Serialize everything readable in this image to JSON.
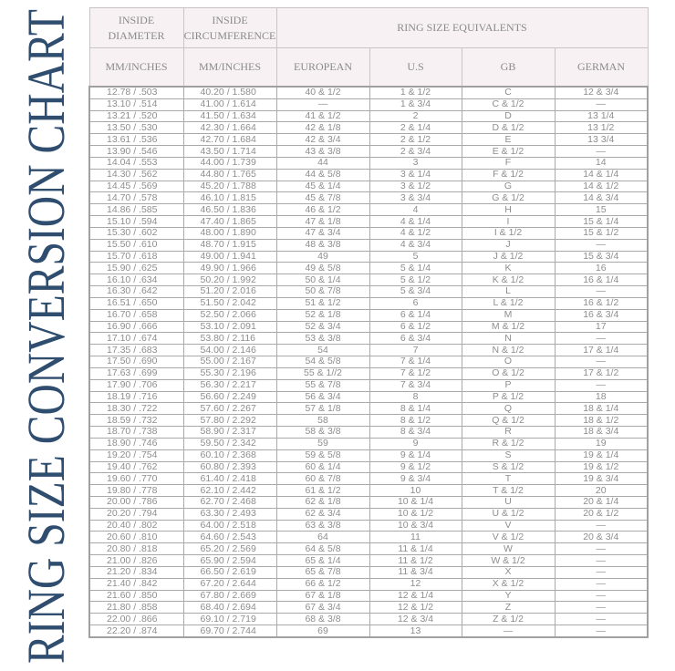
{
  "title": "RING SIZE CONVERSION CHART",
  "colors": {
    "title": "#2f4d6e",
    "header_bg": "#f7f1f3",
    "text": "#8e8e8e"
  },
  "header": {
    "inside_diameter": "INSIDE DIAMETER",
    "inside_circumference": "INSIDE CIRCUMFERENCE",
    "equivalents": "RING SIZE EQUIVALENTS",
    "sub": [
      "MM/INCHES",
      "MM/INCHES",
      "EUROPEAN",
      "U.S",
      "GB",
      "GERMAN"
    ]
  },
  "rows": [
    [
      "12.78 / .503",
      "40.20 / 1.580",
      "40 & 1/2",
      "1 & 1/2",
      "C",
      "12 & 3/4"
    ],
    [
      "13.10 / .514",
      "41.00 / 1.614",
      "—",
      "1 & 3/4",
      "C & 1/2",
      "—"
    ],
    [
      "13.21 / .520",
      "41.50 / 1.634",
      "41 & 1/2",
      "2",
      "D",
      "13 1/4"
    ],
    [
      "13.50 / .530",
      "42.30 / 1.664",
      "42 & 1/8",
      "2 & 1/4",
      "D & 1/2",
      "13 1/2"
    ],
    [
      "13.61 / .536",
      "42.70 / 1.684",
      "42 & 3/4",
      "2 & 1/2",
      "E",
      "13 3/4"
    ],
    [
      "13.90 / .546",
      "43.50 / 1.714",
      "43 & 3/8",
      "2 & 3/4",
      "E & 1/2",
      "—"
    ],
    [
      "14.04 / .553",
      "44.00 / 1.739",
      "44",
      "3",
      "F",
      "14"
    ],
    [
      "14.30 / .562",
      "44.80 / 1.765",
      "44 & 5/8",
      "3 & 1/4",
      "F & 1/2",
      "14 & 1/4"
    ],
    [
      "14.45 / .569",
      "45.20 / 1.788",
      "45 & 1/4",
      "3 & 1/2",
      "G",
      "14 & 1/2"
    ],
    [
      "14.70 / .578",
      "46.10 / 1.815",
      "45 & 7/8",
      "3 & 3/4",
      "G & 1/2",
      "14 & 3/4"
    ],
    [
      "14.86 / .585",
      "46.50 / 1.836",
      "46 & 1/2",
      "4",
      "H",
      "15"
    ],
    [
      "15.10 / .594",
      "47.40 / 1.865",
      "47 & 1/8",
      "4 & 1/4",
      "I",
      "15 & 1/4"
    ],
    [
      "15.30 / .602",
      "48.00 / 1.890",
      "47 & 3/4",
      "4 & 1/2",
      "I & 1/2",
      "15 & 1/2"
    ],
    [
      "15.50 / .610",
      "48.70 / 1.915",
      "48 & 3/8",
      "4 & 3/4",
      "J",
      "—"
    ],
    [
      "15.70 / .618",
      "49.00 / 1.941",
      "49",
      "5",
      "J & 1/2",
      "15 & 3/4"
    ],
    [
      "15.90 / .625",
      "49.90 / 1.966",
      "49 & 5/8",
      "5 & 1/4",
      "K",
      "16"
    ],
    [
      "16.10 / .634",
      "50.20 / 1.992",
      "50 & 1/4",
      "5 & 1/2",
      "K & 1/2",
      "16 & 1/4"
    ],
    [
      "16.30 / .642",
      "51.20 / 2.016",
      "50 & 7/8",
      "5 & 3/4",
      "L",
      "—"
    ],
    [
      "16.51 / .650",
      "51.50 / 2.042",
      "51 & 1/2",
      "6",
      "L & 1/2",
      "16 & 1/2"
    ],
    [
      "16.70 / .658",
      "52.50 / 2.066",
      "52 & 1/8",
      "6 & 1/4",
      "M",
      "16 & 3/4"
    ],
    [
      "16.90 / .666",
      "53.10 / 2.091",
      "52 & 3/4",
      "6 & 1/2",
      "M & 1/2",
      "17"
    ],
    [
      "17.10 / .674",
      "53.80 / 2.116",
      "53 & 3/8",
      "6 & 3/4",
      "N",
      "—"
    ],
    [
      "17.35 / .683",
      "54.00 / 2.146",
      "54",
      "7",
      "N & 1/2",
      "17 & 1/4"
    ],
    [
      "17.50 / .690",
      "55.00 / 2.167",
      "54 & 5/8",
      "7 & 1/4",
      "O",
      "—"
    ],
    [
      "17.63 / .699",
      "55.30 / 2.196",
      "55 & 1//2",
      "7 & 1/2",
      "O & 1/2",
      "17 & 1/2"
    ],
    [
      "17.90 / .706",
      "56.30 / 2.217",
      "55 & 7/8",
      "7 & 3/4",
      "P",
      "—"
    ],
    [
      "18.19 / .716",
      "56.60 / 2.249",
      "56 & 3/4",
      "8",
      "P & 1/2",
      "18"
    ],
    [
      "18.30 / .722",
      "57.60 / 2.267",
      "57 & 1/8",
      "8 & 1/4",
      "Q",
      "18 & 1/4"
    ],
    [
      "18.59 / .732",
      "57.80 / 2.292",
      "58",
      "8 & 1/2",
      "Q & 1/2",
      "18 & 1/2"
    ],
    [
      "18.70 / .738",
      "58.90 / 2.317",
      "58 & 3/8",
      "8 & 3/4",
      "R",
      "18 & 3/4"
    ],
    [
      "18.90 / .746",
      "59.50 / 2.342",
      "59",
      "9",
      "R & 1/2",
      "19"
    ],
    [
      "19.20 / .754",
      "60.10 / 2.368",
      "59 & 5/8",
      "9 & 1/4",
      "S",
      "19 & 1/4"
    ],
    [
      "19.40 / .762",
      "60.80 / 2.393",
      "60 & 1/4",
      "9 & 1/2",
      "S & 1/2",
      "19 & 1/2"
    ],
    [
      "19.60 / .770",
      "61.40 / 2.418",
      "60 & 7/8",
      "9 & 3/4",
      "T",
      "19 & 3/4"
    ],
    [
      "19.80 / .778",
      "62.10 / 2.442",
      "61 & 1/2",
      "10",
      "T & 1/2",
      "20"
    ],
    [
      "20.00 / .786",
      "62.70 / 2.468",
      "62 & 1/8",
      "10 & 1/4",
      "U",
      "20 & 1/4"
    ],
    [
      "20.20 / .794",
      "63.30 / 2.493",
      "62 & 3/4",
      "10 & 1/2",
      "U & 1/2",
      "20 & 1/2"
    ],
    [
      "20.40 / .802",
      "64.00 / 2.518",
      "63 & 3/8",
      "10 & 3/4",
      "V",
      "—"
    ],
    [
      "20.60 / .810",
      "64.60 / 2.543",
      "64",
      "11",
      "V & 1/2",
      "20 & 3/4"
    ],
    [
      "20.80 / .818",
      "65.20 / 2.569",
      "64 & 5/8",
      "11 & 1/4",
      "W",
      "—"
    ],
    [
      "21.00 / .826",
      "65.90 / 2.594",
      "65 & 1/4",
      "11 & 1/2",
      "W & 1/2",
      "—"
    ],
    [
      "21.20 / .834",
      "66.50 / 2.619",
      "65 & 7/8",
      "11 & 3/4",
      "X",
      "—"
    ],
    [
      "21.40 / .842",
      "67.20 / 2.644",
      "66 & 1/2",
      "12",
      "X & 1/2",
      "—"
    ],
    [
      "21.60 / .850",
      "67.80 / 2.669",
      "67 & 1/8",
      "12 & 1/4",
      "Y",
      "—"
    ],
    [
      "21.80 / .858",
      "68.40 / 2.694",
      "67 & 3/4",
      "12 & 1/2",
      "Z",
      "—"
    ],
    [
      "22.00 / .866",
      "69.10 / 2.719",
      "68 & 3/8",
      "12 & 3/4",
      "Z & 1/2",
      "—"
    ],
    [
      "22.20 / .874",
      "69.70 / 2.744",
      "69",
      "13",
      "—",
      "—"
    ]
  ]
}
